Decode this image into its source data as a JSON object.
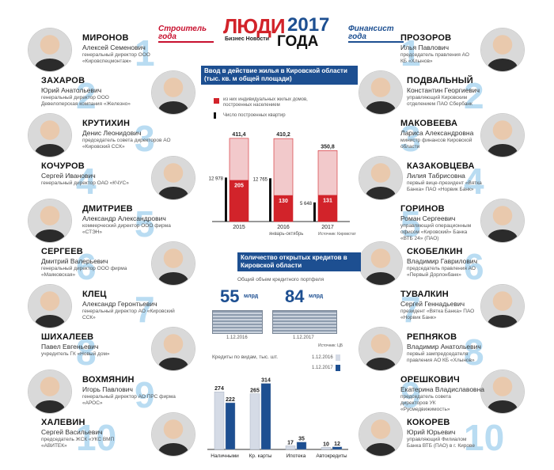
{
  "header": {
    "title_ludi": "ЛЮДИ",
    "title_year": "2017",
    "title_sub": "Бизнес Новости",
    "title_goda": "ГОДА",
    "left_label": "Строитель года",
    "right_label": "Финансист года"
  },
  "builders": [
    {
      "n": "1",
      "surname": "МИРОНОВ",
      "fio": "Алексей Семенович",
      "pos": "генеральный директор ООО «Кировспецмонтаж»"
    },
    {
      "n": "2",
      "surname": "ЗАХАРОВ",
      "fio": "Юрий Анатольевич",
      "pos": "генеральный директор ООО Девелоперская компания «Железно»"
    },
    {
      "n": "3",
      "surname": "КРУТИХИН",
      "fio": "Денис Леонидович",
      "pos": "председатель совета директоров АО «Кировский ССК»"
    },
    {
      "n": "4",
      "surname": "КОЧУРОВ",
      "fio": "Сергей Иванович",
      "pos": "генеральный директор ОАО «КЧУС»"
    },
    {
      "n": "5",
      "surname": "ДМИТРИЕВ",
      "fio": "Александр Александрович",
      "pos": "коммерческий директор ООО фирма «СТЭН»"
    },
    {
      "n": "6",
      "surname": "СЕРГЕЕВ",
      "fio": "Дмитрий Валерьевич",
      "pos": "генеральный директор ООО фирма «Маяковская»"
    },
    {
      "n": "7",
      "surname": "КЛЕЦ",
      "fio": "Александр Геронтьевич",
      "pos": "генеральный директор АО «Кировский ССК»"
    },
    {
      "n": "8",
      "surname": "ШИХАЛЕЕВ",
      "fio": "Павел Евгеньевич",
      "pos": "учредитель ГК «Новый дом»"
    },
    {
      "n": "9",
      "surname": "ВОХМЯНИН",
      "fio": "Игорь Павлович",
      "pos": "генеральный директор АО ПРС фирма «АРОС»"
    },
    {
      "n": "10",
      "surname": "ХАЛЕВИН",
      "fio": "Сергей Васильевич",
      "pos": "председатель ЖСК «УКС ВМП «АВИТЕК»"
    }
  ],
  "financiers": [
    {
      "n": "1",
      "surname": "ПРОЗОРОВ",
      "fio": "Илья Павлович",
      "pos": "председатель правления АО КБ «Хлынов»"
    },
    {
      "n": "2",
      "surname": "ПОДВАЛЬНЫЙ",
      "fio": "Константин Георгиевич",
      "pos": "управляющий Кировским отделением ПАО Сбербанк"
    },
    {
      "n": "3",
      "surname": "МАКОВЕЕВА",
      "fio": "Лариса Александровна",
      "pos": "министр финансов Кировской области"
    },
    {
      "n": "4",
      "surname": "КАЗАКОВЦЕВА",
      "fio": "Лилия Табрисовна",
      "pos": "первый вице-президент «Вятка Банка» ПАО «Норвик Банк»"
    },
    {
      "n": "5",
      "surname": "ГОРИНОВ",
      "fio": "Роман Сергеевич",
      "pos": "управляющий операционным офисом «Кировский» Банка «ВТБ 24» (ПАО)"
    },
    {
      "n": "6",
      "surname": "СКОБЕЛКИН",
      "fio": "Владимир Гаврилович",
      "pos": "председатель правления АО «Первый Дорлонбанк»"
    },
    {
      "n": "7",
      "surname": "ТУВАЛКИН",
      "fio": "Сергей Геннадьевич",
      "pos": "президент «Вятка Банка» ПАО «Норвик Банк»"
    },
    {
      "n": "8",
      "surname": "РЕПНЯКОВ",
      "fio": "Владимир Анатольевич",
      "pos": "первый зампредседателя правления АО КБ «Хлынов»"
    },
    {
      "n": "9",
      "surname": "ОРЕШКОВИЧ",
      "fio": "Екатерина Владиславовна",
      "pos": "председатель совета директоров УК «Русмедвижимость»"
    },
    {
      "n": "10",
      "surname": "КОКОРЕВ",
      "fio": "Юрий Юрьевич",
      "pos": "управляющий Филиалом Банка ВТБ (ПАО) в г. Кирове"
    }
  ],
  "housing": {
    "title": "Ввод в действие жилья в Кировской области (тыс. кв. м общей площади)",
    "legend_red": "из них индивидуальных жилых домов, построенных населением",
    "legend_black": "Число построенных квартир",
    "note": "январь-октябрь",
    "source": "Источник: Кировстат",
    "chart_data": {
      "type": "bar",
      "categories": [
        "2015",
        "2016",
        "2017"
      ],
      "series": [
        {
          "values": [
            411.4,
            410.2,
            350.8
          ]
        },
        {
          "name": "из них индивидуальных жилых домов, построенных населением",
          "values": [
            205,
            130,
            131
          ]
        },
        {
          "name": "Число построенных квартир",
          "values": [
            12978,
            12765,
            5648
          ]
        }
      ],
      "value_labels": [
        "411,4",
        "410,2",
        "350,8"
      ],
      "apartment_labels": [
        "12 978",
        "12 765",
        "5 648"
      ],
      "colors": {
        "total": "#f2c9cb",
        "individual": "#d2232a",
        "apartments": "#111111"
      }
    }
  },
  "credits": {
    "title": "Количество открытых кредитов в Кировской области",
    "portfolio_label": "Общий объем кредитного портфеля",
    "amount1": "55",
    "amount2": "84",
    "unit": "млрд",
    "date1": "1.12.2016",
    "date2": "1.12.2017",
    "source": "Источник: ЦБ",
    "kinds_label": "Кредиты по видам, тыс. шт.",
    "chart_data": {
      "type": "bar",
      "categories": [
        "Наличными",
        "Кр. карты",
        "Ипотека",
        "Автокредиты"
      ],
      "series": [
        {
          "name": "1.12.2016",
          "values": [
            274,
            265,
            17,
            10
          ]
        },
        {
          "name": "1.12.2017",
          "values": [
            222,
            314,
            35,
            12
          ]
        }
      ],
      "colors": {
        "2016": "#d5dbe6",
        "2017": "#1d4f91"
      }
    }
  }
}
